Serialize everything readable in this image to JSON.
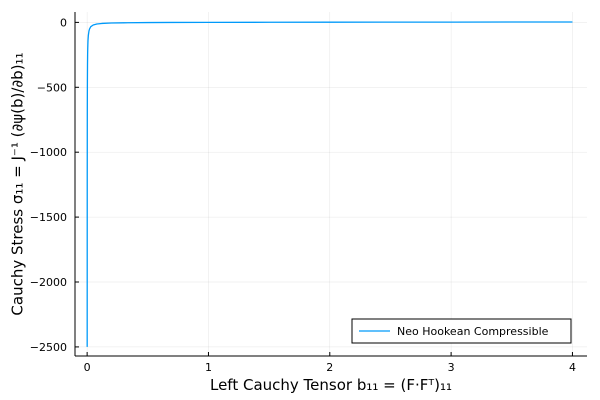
{
  "chart_data": {
    "type": "line",
    "xlabel": "Left Cauchy Tensor b₁₁ = (F·Fᵀ)₁₁",
    "ylabel": "Cauchy Stress σ₁₁ = J⁻¹ (∂ψ(b)/∂b)₁₁",
    "xlim": [
      -0.1,
      4.12
    ],
    "ylim": [
      -2570,
      80
    ],
    "xticks": [
      0,
      1,
      2,
      3,
      4
    ],
    "xtick_labels": [
      "0",
      "1",
      "2",
      "3",
      "4"
    ],
    "yticks": [
      0,
      -500,
      -1000,
      -1500,
      -2000,
      -2500
    ],
    "ytick_labels": [
      "0",
      "−500",
      "−1000",
      "−1500",
      "−2000",
      "−2500"
    ],
    "grid": true,
    "legend_position": "bottom-right",
    "series": [
      {
        "name": "Neo Hookean Compressible",
        "color": "#009AFA",
        "x": [
          0.0004,
          0.0008,
          0.0012,
          0.0015,
          0.0018,
          0.0022,
          0.003,
          0.004,
          0.005,
          0.007,
          0.01,
          0.015,
          0.02,
          0.03,
          0.05,
          0.08,
          0.12,
          0.2,
          0.3,
          0.5,
          0.7,
          1.0,
          1.5,
          2.0,
          2.5,
          3.0,
          3.5,
          4.0
        ],
        "y": [
          -2500,
          -1250,
          -833,
          -667,
          -556,
          -455,
          -333,
          -250,
          -200,
          -143,
          -100,
          -67,
          -50,
          -33,
          -20,
          -12.5,
          -8.3,
          -5.0,
          -3.2,
          -1.5,
          -0.6,
          0,
          0.8,
          1.4,
          1.9,
          2.3,
          2.7,
          3.0
        ]
      }
    ]
  }
}
